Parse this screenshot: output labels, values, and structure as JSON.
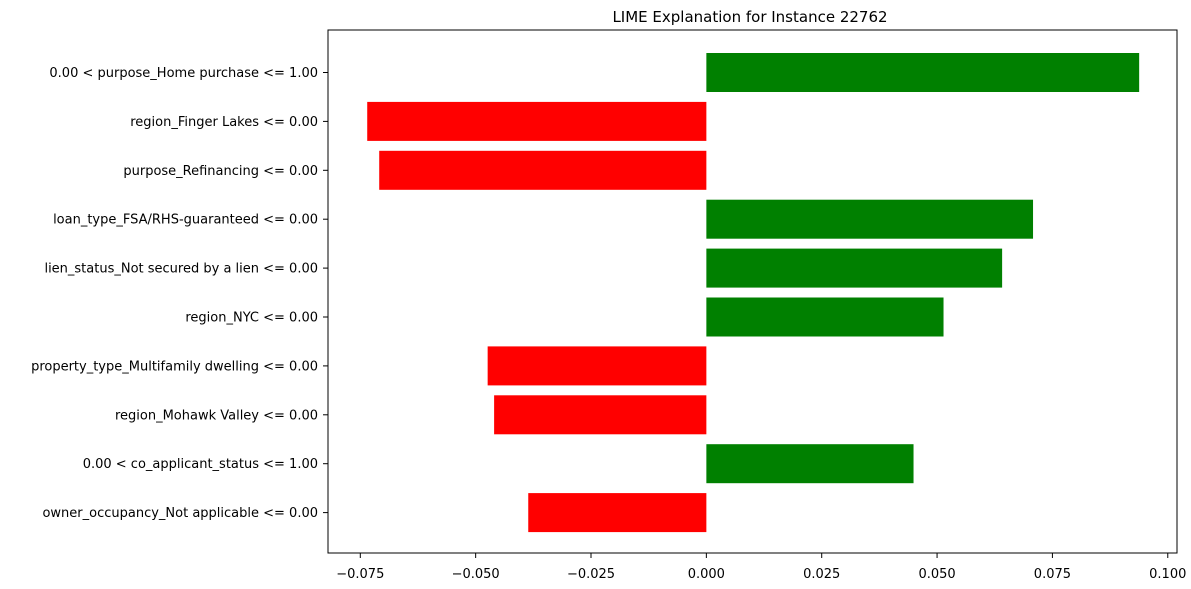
{
  "chart_data": {
    "type": "bar",
    "orientation": "horizontal",
    "title": "LIME Explanation for Instance 22762",
    "xlabel": "",
    "ylabel": "",
    "xlim": [
      -0.082,
      0.102
    ],
    "grid": false,
    "legend": "none",
    "x_ticks": [
      -0.075,
      -0.05,
      -0.025,
      0.0,
      0.025,
      0.05,
      0.075,
      0.1
    ],
    "x_tick_labels": [
      "−0.075",
      "−0.050",
      "−0.025",
      "0.000",
      "0.025",
      "0.050",
      "0.075",
      "0.100"
    ],
    "positive_color": "#008000",
    "negative_color": "#ff0000",
    "categories": [
      "0.00 < purpose_Home purchase <= 1.00",
      "region_Finger Lakes <= 0.00",
      "purpose_Refinancing <= 0.00",
      "loan_type_FSA/RHS-guaranteed <= 0.00",
      "lien_status_Not secured by a lien <= 0.00",
      "region_NYC <= 0.00",
      "property_type_Multifamily dwelling <= 0.00",
      "region_Mohawk Valley <= 0.00",
      "0.00 < co_applicant_status <= 1.00",
      "owner_occupancy_Not applicable <= 0.00"
    ],
    "values": [
      0.0938,
      -0.0735,
      -0.0709,
      0.0708,
      0.0641,
      0.0514,
      -0.0474,
      -0.046,
      0.0449,
      -0.0386
    ]
  }
}
